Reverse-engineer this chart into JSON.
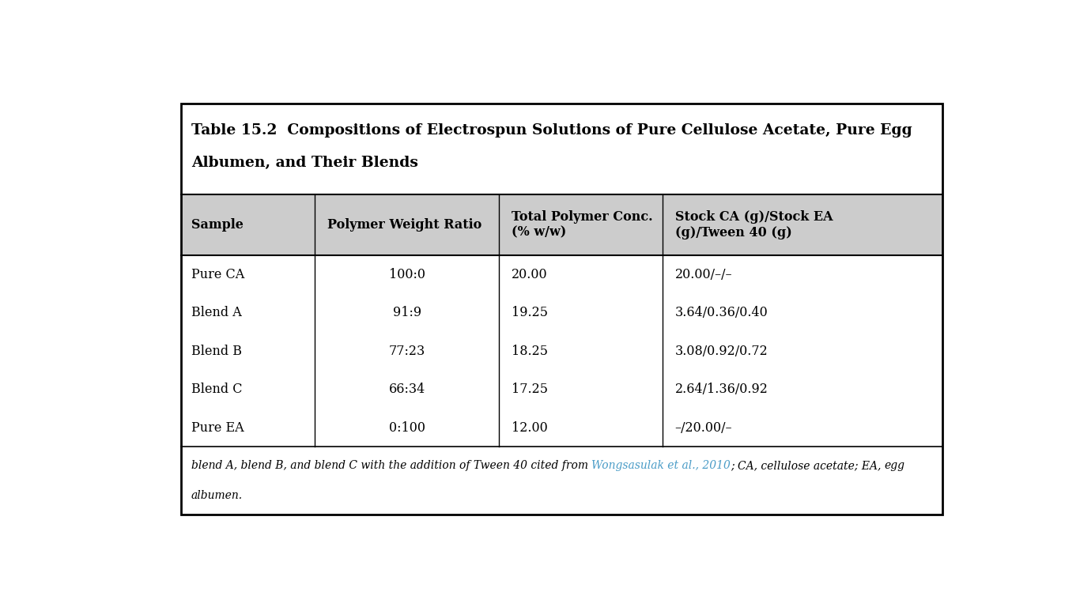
{
  "title_line1": "Table 15.2  Compositions of Electrospun Solutions of Pure Cellulose Acetate, Pure Egg",
  "title_line2": "Albumen, and Their Blends",
  "col_headers": [
    "Sample",
    "Polymer Weight Ratio",
    "Total Polymer Conc.\n(% w/w)",
    "Stock CA (g)/Stock EA\n(g)/Tween 40 (g)"
  ],
  "rows": [
    [
      "Pure CA",
      "100:0",
      "20.00",
      "20.00/–/–"
    ],
    [
      "Blend A",
      "91:9",
      "19.25",
      "3.64/0.36/0.40"
    ],
    [
      "Blend B",
      "77:23",
      "18.25",
      "3.08/0.92/0.72"
    ],
    [
      "Blend C",
      "66:34",
      "17.25",
      "2.64/1.36/0.92"
    ],
    [
      "Pure EA",
      "0:100",
      "12.00",
      "–/20.00/–"
    ]
  ],
  "footnote_plain1": "blend A, blend B, and blend C with the addition of Tween 40 cited from ",
  "footnote_link": "Wongsasulak et al., 2010",
  "footnote_plain2": "; CA, cellulose acetate; EA, ",
  "footnote_italic_end": "egg",
  "footnote_newline": "\nalbumen.",
  "link_color": "#4a9cc7",
  "header_bg": "#cccccc",
  "outer_border_color": "#000000",
  "inner_line_color": "#000000",
  "bg_color": "#ffffff"
}
